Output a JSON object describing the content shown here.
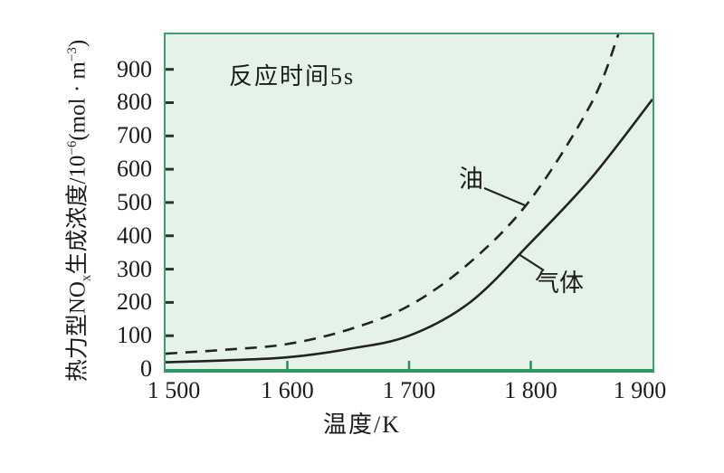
{
  "colors": {
    "plot_fill": "#e5f2e7",
    "plot_border": "#3da36e",
    "axis_bottom": "#2f9763",
    "curve": "#222222",
    "tick_left": "#26352e",
    "tick_bottom": "#2c8a5c",
    "text": "#1b1b1b"
  },
  "chart_data": {
    "type": "line",
    "title": "",
    "xlabel": "温度/K",
    "ylabel": "热力型NOx生成浓度/10−6(mol·m−3)",
    "ylabel_parts": {
      "p1": "热力型NO",
      "sub1": "x",
      "p2": "生成浓度/10",
      "sup1": "−6",
      "p3": "(mol · m",
      "sup2": "−3",
      "p4": ")"
    },
    "annotation": "反应时间5s",
    "xlim": [
      1500,
      1900
    ],
    "ylim": [
      0,
      1005
    ],
    "grid": false,
    "legend_position": "inline-labels",
    "x_ticks": [
      {
        "value": 1500,
        "label": "1 500"
      },
      {
        "value": 1600,
        "label": "1 600"
      },
      {
        "value": 1700,
        "label": "1 700"
      },
      {
        "value": 1800,
        "label": "1 800"
      },
      {
        "value": 1900,
        "label": "1 900"
      }
    ],
    "y_ticks": [
      {
        "value": 0,
        "label": "0"
      },
      {
        "value": 100,
        "label": "100"
      },
      {
        "value": 200,
        "label": "200"
      },
      {
        "value": 300,
        "label": "300"
      },
      {
        "value": 400,
        "label": "400"
      },
      {
        "value": 500,
        "label": "500"
      },
      {
        "value": 600,
        "label": "600"
      },
      {
        "value": 700,
        "label": "700"
      },
      {
        "value": 800,
        "label": "800"
      },
      {
        "value": 900,
        "label": "900"
      }
    ],
    "series": [
      {
        "name": "油",
        "style": "dashed",
        "x": [
          1500,
          1550,
          1600,
          1650,
          1700,
          1750,
          1800,
          1850,
          1872
        ],
        "y": [
          46,
          58,
          75,
          118,
          190,
          320,
          510,
          800,
          1005
        ]
      },
      {
        "name": "气体",
        "style": "solid",
        "x": [
          1500,
          1550,
          1600,
          1650,
          1700,
          1750,
          1800,
          1850,
          1900
        ],
        "y": [
          20,
          26,
          35,
          60,
          100,
          200,
          380,
          575,
          810
        ]
      }
    ]
  }
}
